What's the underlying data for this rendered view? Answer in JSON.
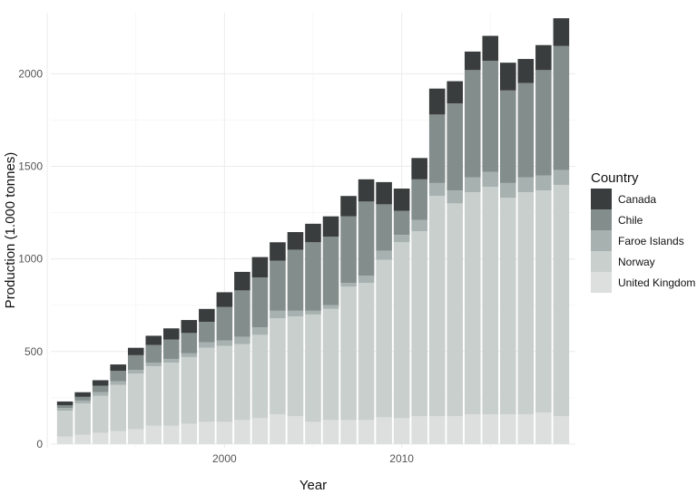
{
  "chart_data": {
    "type": "bar",
    "stacked": true,
    "xlabel": "Year",
    "ylabel": "Production (1.000 tonnes)",
    "x_ticks": [
      2000,
      2010
    ],
    "y_ticks": [
      0,
      500,
      1000,
      1500,
      2000
    ],
    "xlim": [
      1990.2,
      2019.8
    ],
    "ylim": [
      -20,
      2330
    ],
    "grid": true,
    "legend": {
      "title": "Country",
      "position": "right"
    },
    "categories": [
      1991,
      1992,
      1993,
      1994,
      1995,
      1996,
      1997,
      1998,
      1999,
      2000,
      2001,
      2002,
      2003,
      2004,
      2005,
      2006,
      2007,
      2008,
      2009,
      2010,
      2011,
      2012,
      2013,
      2014,
      2015,
      2016,
      2017,
      2018,
      2019
    ],
    "series": [
      {
        "name": "Canada",
        "color": "#3a3d3d",
        "values": [
          20,
          25,
          30,
          35,
          40,
          50,
          60,
          70,
          70,
          80,
          100,
          110,
          100,
          95,
          100,
          110,
          110,
          120,
          120,
          120,
          115,
          140,
          120,
          100,
          135,
          150,
          130,
          135,
          150
        ]
      },
      {
        "name": "Chile",
        "color": "#838d8b",
        "values": [
          15,
          20,
          35,
          55,
          80,
          95,
          105,
          110,
          110,
          180,
          250,
          270,
          270,
          330,
          370,
          370,
          360,
          400,
          250,
          130,
          220,
          370,
          470,
          580,
          600,
          500,
          510,
          570,
          670
        ]
      },
      {
        "name": "Faroe Islands",
        "color": "#a7b1af",
        "values": [
          15,
          15,
          20,
          20,
          20,
          20,
          20,
          20,
          30,
          30,
          40,
          40,
          40,
          30,
          20,
          20,
          20,
          40,
          50,
          40,
          60,
          70,
          70,
          80,
          80,
          80,
          80,
          80,
          80
        ]
      },
      {
        "name": "Norway",
        "color": "#c9cfcd",
        "values": [
          140,
          170,
          200,
          250,
          300,
          320,
          340,
          360,
          400,
          410,
          410,
          450,
          520,
          540,
          580,
          600,
          720,
          740,
          850,
          950,
          1000,
          1190,
          1150,
          1200,
          1230,
          1170,
          1200,
          1200,
          1250
        ]
      },
      {
        "name": "United Kingdom",
        "color": "#dcdfde",
        "values": [
          40,
          50,
          60,
          70,
          80,
          100,
          100,
          110,
          120,
          120,
          130,
          140,
          160,
          150,
          120,
          130,
          130,
          130,
          145,
          140,
          150,
          150,
          150,
          160,
          160,
          160,
          160,
          170,
          150
        ]
      }
    ]
  }
}
